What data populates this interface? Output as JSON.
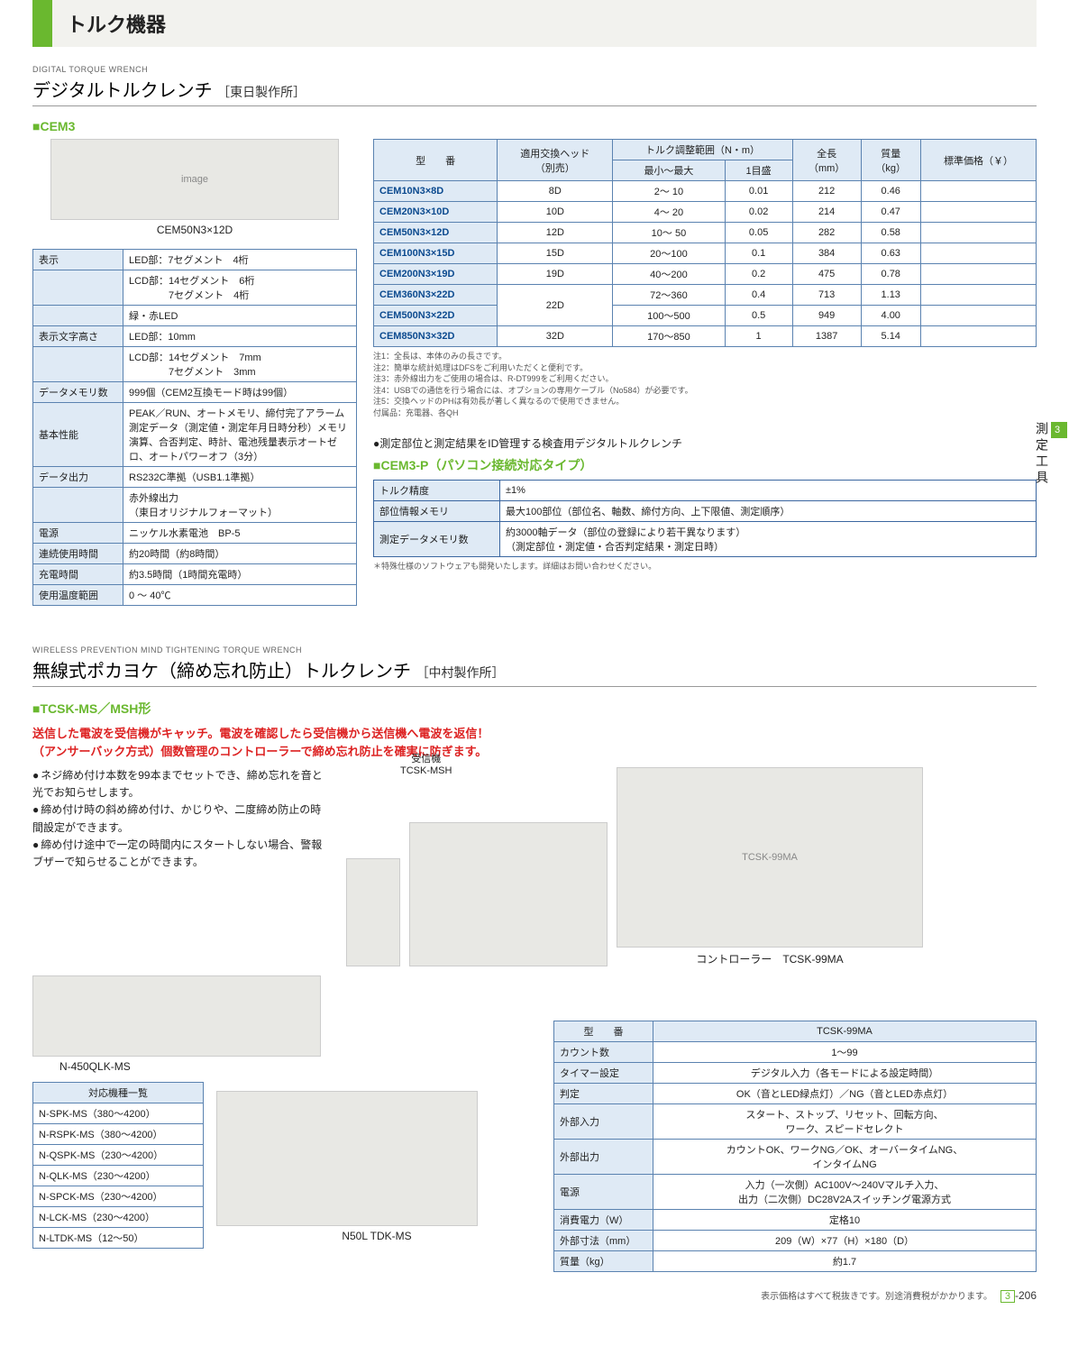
{
  "header": {
    "category": "トルク機器"
  },
  "side_tab": {
    "num": "3",
    "label": "測定工具"
  },
  "sectionA": {
    "eng": "DIGITAL TORQUE WRENCH",
    "title": "デジタルトルクレンチ",
    "maker": "［東日製作所］",
    "model_label": "■CEM3",
    "img_caption": "CEM50N3×12D",
    "spec_rows": [
      {
        "l": "表示",
        "v": "LED部：7セグメント　4桁"
      },
      {
        "l": "",
        "v": "LCD部：14セグメント　6桁\n　　　　7セグメント　4桁"
      },
      {
        "l": "",
        "v": "緑・赤LED"
      },
      {
        "l": "表示文字高さ",
        "v": "LED部：10mm"
      },
      {
        "l": "",
        "v": "LCD部：14セグメント　7mm\n　　　　7セグメント　3mm"
      },
      {
        "l": "データメモリ数",
        "v": "999個（CEM2互換モード時は99個）"
      },
      {
        "l": "基本性能",
        "v": "PEAK／RUN、オートメモリ、締付完了アラーム測定データ（測定値・測定年月日時分秒）メモリ演算、合否判定、時計、電池残量表示オートゼロ、オートパワーオフ（3分）"
      },
      {
        "l": "データ出力",
        "v": "RS232C準拠（USB1.1準拠）"
      },
      {
        "l": "",
        "v": "赤外線出力\n（東日オリジナルフォーマット）"
      },
      {
        "l": "電源",
        "v": "ニッケル水素電池　BP-5"
      },
      {
        "l": "連続使用時間",
        "v": "約20時間（約8時間）"
      },
      {
        "l": "充電時間",
        "v": "約3.5時間（1時間充電時）"
      },
      {
        "l": "使用温度範囲",
        "v": "0 ～ 40℃"
      }
    ],
    "main_headers": [
      "型　　番",
      "適用交換ヘッド\n（別売）",
      "トルク調整範囲（N・m）",
      "全長\n（mm）",
      "質量\n（kg）",
      "標準価格（￥）"
    ],
    "main_subheaders": [
      "最小～最大",
      "1目盛"
    ],
    "main_rows": [
      [
        "CEM10N3×8D",
        "8D",
        "2～  10",
        "0.01",
        "212",
        "0.46",
        ""
      ],
      [
        "CEM20N3×10D",
        "10D",
        "4～  20",
        "0.02",
        "214",
        "0.47",
        ""
      ],
      [
        "CEM50N3×12D",
        "12D",
        "10～  50",
        "0.05",
        "282",
        "0.58",
        ""
      ],
      [
        "CEM100N3×15D",
        "15D",
        "20～100",
        "0.1",
        "384",
        "0.63",
        ""
      ],
      [
        "CEM200N3×19D",
        "19D",
        "40～200",
        "0.2",
        "475",
        "0.78",
        ""
      ],
      [
        "CEM360N3×22D",
        "22D",
        "72～360",
        "0.4",
        "713",
        "1.13",
        ""
      ],
      [
        "CEM500N3×22D",
        "",
        "100～500",
        "0.5",
        "949",
        "4.00",
        ""
      ],
      [
        "CEM850N3×32D",
        "32D",
        "170～850",
        "1",
        "1387",
        "5.14",
        ""
      ]
    ],
    "notes": "注1：全長は、本体のみの長さです。\n注2：簡単な統計処理はDFSをご利用いただくと便利です。\n注3：赤外線出力をご使用の場合は、R-DT999をご利用ください。\n注4：USBでの通信を行う場合には、オプションの専用ケーブル（No584）が必要です。\n注5：交換ヘッドのPHは有効長が著しく異なるので使用できません。\n付属品：充電器、各QH",
    "cem3p_lead": "●測定部位と測定結果をID管理する検査用デジタルトルクレンチ",
    "cem3p_label": "■CEM3-P（パソコン接続対応タイプ）",
    "cem3p_rows": [
      [
        "トルク精度",
        "±1%"
      ],
      [
        "部位情報メモリ",
        "最大100部位（部位名、軸数、締付方向、上下限値、測定順序）"
      ],
      [
        "測定データメモリ数",
        "約3000軸データ（部位の登録により若干異なります）\n（測定部位・測定値・合否判定結果・測定日時）"
      ]
    ],
    "cem3p_note": "＊特殊仕様のソフトウェアも開発いたします。詳細はお問い合わせください。"
  },
  "sectionB": {
    "eng": "WIRELESS PREVENTION MIND TIGHTENING TORQUE WRENCH",
    "title": "無線式ポカヨケ（締め忘れ防止）トルクレンチ",
    "maker": "［中村製作所］",
    "model_label": "■TCSK-MS／MSH形",
    "tagline": "送信した電波を受信機がキャッチ。電波を確認したら受信機から送信機へ電波を返信！\n（アンサーバック方式）個数管理のコントローラーで締め忘れ防止を確実に防ぎます。",
    "bullets": [
      "ネジ締め付け本数を99本までセットでき、締め忘れを音と光でお知らせします。",
      "締め付け時の斜め締め付け、かじりや、二度締め防止の時間設定ができます。",
      "締め付け途中で一定の時間内にスタートしない場合、警報ブザーで知らせることができます。"
    ],
    "img_receiver": "受信機\nTCSK-MSH",
    "img_controller": "コントローラー　TCSK-99MA",
    "img_wrench": "N-450QLK-MS",
    "img_driver": "N50L TDK-MS",
    "compat_header": "対応機種一覧",
    "compat_rows": [
      "N-SPK-MS（380～4200）",
      "N-RSPK-MS（380～4200）",
      "N-QSPK-MS（230～4200）",
      "N-QLK-MS（230～4200）",
      "N-SPCK-MS（230～4200）",
      "N-LCK-MS（230～4200）",
      "N-LTDK-MS（12～50）"
    ],
    "ctrl_header": [
      "型　　番",
      "TCSK-99MA"
    ],
    "ctrl_rows": [
      [
        "カウント数",
        "1～99"
      ],
      [
        "タイマー設定",
        "デジタル入力（各モードによる設定時間）"
      ],
      [
        "判定",
        "OK（音とLED緑点灯）／NG（音とLED赤点灯）"
      ],
      [
        "外部入力",
        "スタート、ストップ、リセット、回転方向、\nワーク、スピードセレクト"
      ],
      [
        "外部出力",
        "カウントOK、ワークNG／OK、オーバータイムNG、\nインタイムNG"
      ],
      [
        "電源",
        "入力（一次側）AC100V～240Vマルチ入力、\n出力（二次側）DC28V2Aスイッチング電源方式"
      ],
      [
        "消費電力（W）",
        "定格10"
      ],
      [
        "外部寸法（mm）",
        "209（W）×77（H）×180（D）"
      ],
      [
        "質量（kg）",
        "約1.7"
      ]
    ]
  },
  "footer": {
    "text": "表示価格はすべて税抜きです。別途消費税がかかります。",
    "page_section": "3",
    "page_num": "-206"
  }
}
